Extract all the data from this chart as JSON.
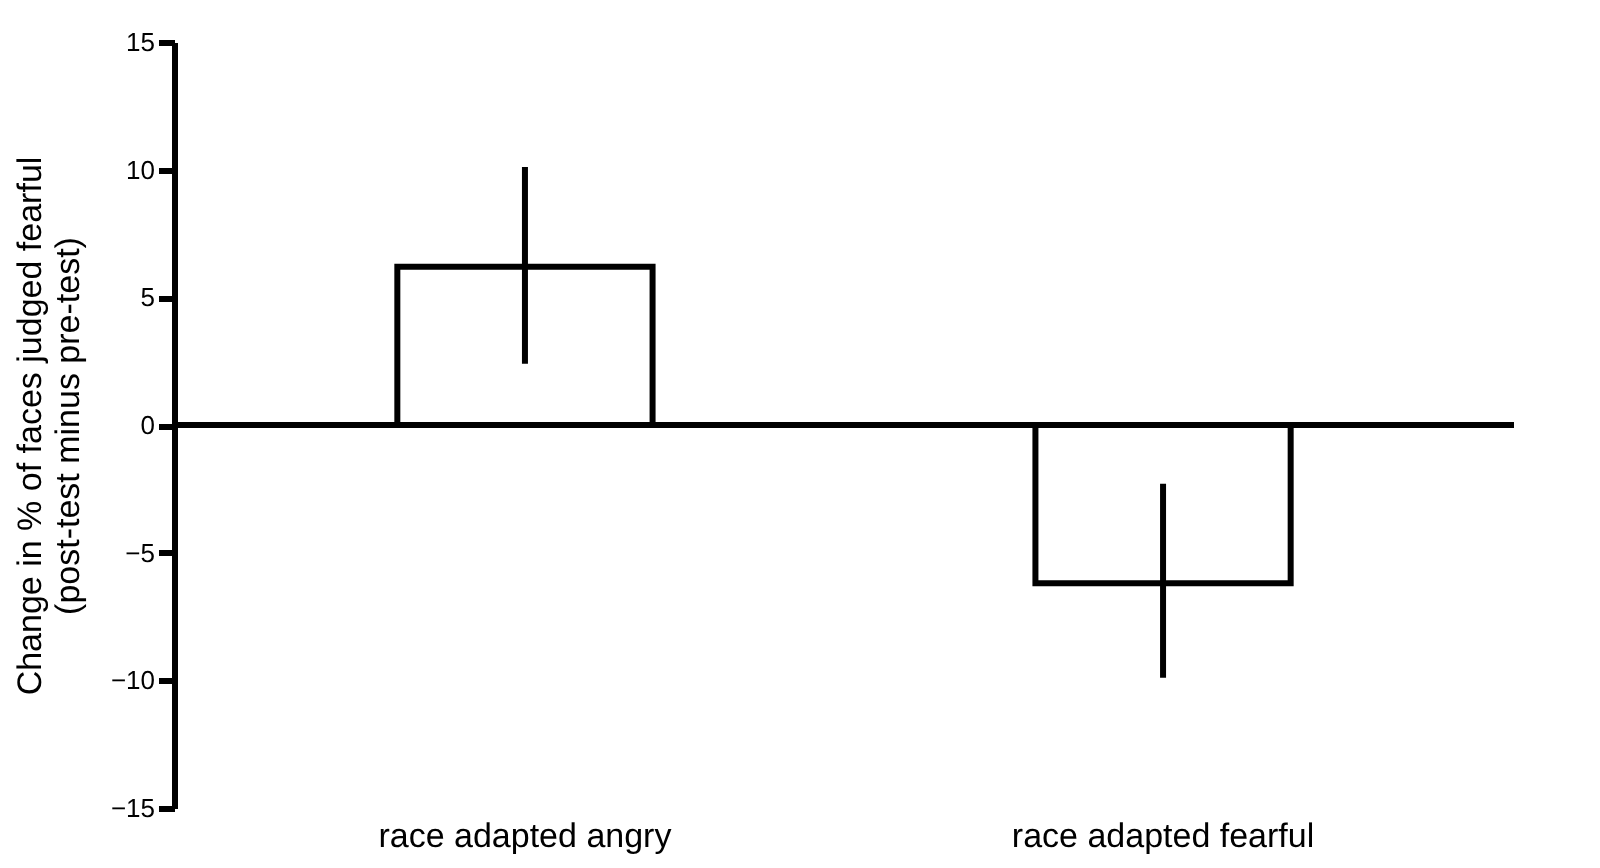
{
  "chart_data": {
    "type": "bar",
    "ylabel": "Change in % of faces judged fearful\n(post-test minus pre-test)",
    "categories": [
      "race adapted angry",
      "race adapted fearful"
    ],
    "values": [
      6.2,
      -6.2
    ],
    "color": "#ffffff",
    "errors": [
      [
        2.4,
        10.1
      ],
      [
        -9.9,
        -2.3
      ]
    ],
    "ylim": [
      -15,
      15
    ],
    "yticks": [
      -15,
      -10,
      -5,
      0,
      5,
      10,
      15
    ],
    "grid": false,
    "ref_lines": [
      {
        "axis": "y",
        "value": 0,
        "color": "#000000"
      }
    ]
  }
}
